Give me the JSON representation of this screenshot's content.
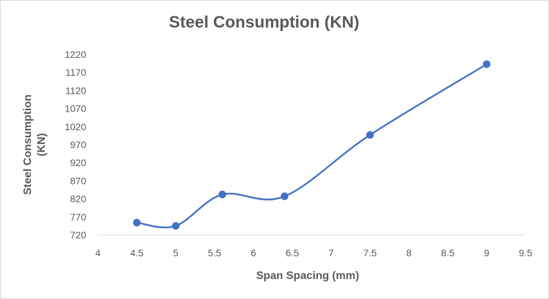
{
  "chart_data": {
    "type": "line",
    "title": "Steel Consumption (KN)",
    "xlabel": "Span Spacing (mm)",
    "ylabel_lines": [
      "Steel Consumption",
      "(KN)"
    ],
    "x_ticks": [
      "4",
      "4.5",
      "5",
      "5.5",
      "6",
      "6.5",
      "7",
      "7.5",
      "8",
      "8.5",
      "9",
      "9.5"
    ],
    "y_ticks": [
      "720",
      "770",
      "820",
      "870",
      "920",
      "970",
      "1020",
      "1070",
      "1120",
      "1170",
      "1220"
    ],
    "xlim": [
      4,
      9.5
    ],
    "ylim": [
      720,
      1220
    ],
    "smooth": true,
    "grid": false,
    "series": [
      {
        "name": "Steel Consumption (KN)",
        "color": "#4472c4",
        "x": [
          4.5,
          5.0,
          5.6,
          6.4,
          7.5,
          9.0
        ],
        "y": [
          754,
          745,
          832,
          827,
          997,
          1193
        ]
      }
    ]
  }
}
